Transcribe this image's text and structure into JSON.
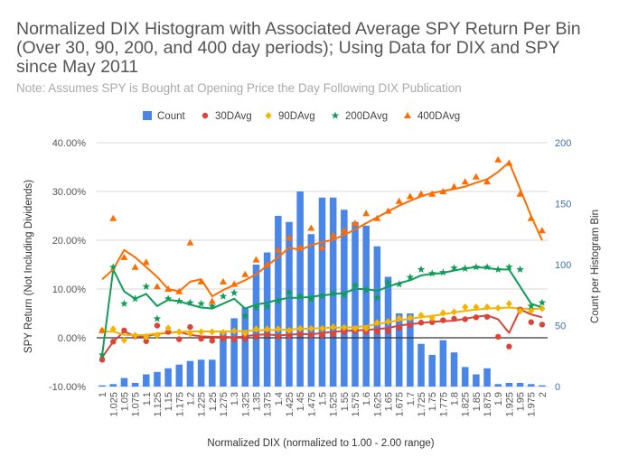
{
  "chart_data": {
    "type": "bar+line+scatter",
    "title_lines": [
      "Normalized DIX Histogram with Associated Average SPY Return Per Bin",
      "(Over 30, 90, 200, and 400 day periods); Using Data for DIX and SPY",
      "since May 2011"
    ],
    "subtitle": "Note: Assumes SPY is Bought at Opening Price the Day Following DIX Publication",
    "xlabel": "Normalized DIX (normalized to 1.00 - 2.00 range)",
    "ylabel_left": "SPY Return (Not Including Dividends)",
    "ylabel_right": "Count per Histogram Bin",
    "y_left_ticks": [
      "40.00%",
      "30.00%",
      "20.00%",
      "10.00%",
      "0.00%",
      "-10.00%"
    ],
    "y_right_ticks": [
      "200",
      "150",
      "100",
      "50",
      "0"
    ],
    "ylim_left": [
      -0.1,
      0.4
    ],
    "ylim_right": [
      0,
      200
    ],
    "legend": [
      {
        "label": "Count",
        "color": "#4a86e8",
        "shape": "square"
      },
      {
        "label": "30DAvg",
        "color": "#db4437",
        "shape": "circle"
      },
      {
        "label": "90DAvg",
        "color": "#f4b400",
        "shape": "diamond"
      },
      {
        "label": "200DAvg",
        "color": "#0f9d58",
        "shape": "star"
      },
      {
        "label": "400DAvg",
        "color": "#ff6d00",
        "shape": "triangle"
      }
    ],
    "x_labels": [
      "1",
      "1.025",
      "1.05",
      "1.075",
      "1.1",
      "1.125",
      "1.15",
      "1.175",
      "1.2",
      "1.225",
      "1.25",
      "1.275",
      "1.3",
      "1.325",
      "1.35",
      "1.375",
      "1.4",
      "1.425",
      "1.45",
      "1.475",
      "1.5",
      "1.525",
      "1.55",
      "1.575",
      "1.6",
      "1.625",
      "1.65",
      "1.675",
      "1.7",
      "1.725",
      "1.75",
      "1.775",
      "1.8",
      "1.825",
      "1.85",
      "1.875",
      "1.9",
      "1.925",
      "1.95",
      "1.975",
      "2"
    ],
    "count": [
      1,
      2,
      7,
      3,
      10,
      12,
      15,
      18,
      21,
      22,
      22,
      45,
      56,
      65,
      100,
      110,
      140,
      135,
      160,
      125,
      155,
      155,
      145,
      135,
      132,
      115,
      90,
      60,
      60,
      35,
      26,
      38,
      28,
      16,
      10,
      15,
      2,
      3,
      3,
      2,
      1
    ],
    "series": [
      {
        "name": "30DAvg",
        "color": "#db4437",
        "points": [
          -0.045,
          -0.008,
          0.015,
          0.003,
          -0.007,
          0.025,
          0.012,
          -0.003,
          0.022,
          -0.002,
          -0.006,
          -0.002,
          -0.003,
          -0.002,
          0.002,
          0.006,
          0.002,
          0.004,
          0.007,
          0.005,
          0.005,
          0.007,
          0.012,
          0.014,
          0.012,
          0.012,
          0.013,
          0.02,
          0.026,
          0.031,
          0.032,
          0.036,
          0.039,
          0.038,
          0.042,
          0.043,
          0.002,
          -0.018,
          0.058,
          0.032,
          0.027
        ],
        "line": [
          -0.04,
          -0.008,
          0.013,
          0.003,
          0.003,
          0.008,
          0.01,
          0.012,
          0.006,
          0.003,
          0.002,
          0.002,
          0.001,
          0.003,
          0.006,
          0.007,
          0.005,
          0.006,
          0.008,
          0.007,
          0.01,
          0.012,
          0.014,
          0.015,
          0.016,
          0.018,
          0.02,
          0.025,
          0.028,
          0.03,
          0.033,
          0.034,
          0.035,
          0.039,
          0.043,
          0.046,
          0.038,
          0.01,
          0.058,
          0.048,
          0.042
        ]
      },
      {
        "name": "90DAvg",
        "color": "#f4b400",
        "points": [
          0.015,
          0.018,
          -0.005,
          0.005,
          0.002,
          0.005,
          0.02,
          0.012,
          0.008,
          0.012,
          0.012,
          0.011,
          0.014,
          0.009,
          0.018,
          0.018,
          0.018,
          0.015,
          0.019,
          0.019,
          0.019,
          0.022,
          0.021,
          0.019,
          0.019,
          0.031,
          0.033,
          0.04,
          0.041,
          0.046,
          0.041,
          0.051,
          0.053,
          0.063,
          0.063,
          0.063,
          0.061,
          0.07,
          0.055,
          0.055,
          0.06
        ],
        "line": [
          0.012,
          0.013,
          0.006,
          0.005,
          0.006,
          0.009,
          0.011,
          0.012,
          0.013,
          0.013,
          0.013,
          0.013,
          0.013,
          0.014,
          0.015,
          0.016,
          0.016,
          0.017,
          0.018,
          0.019,
          0.02,
          0.021,
          0.021,
          0.022,
          0.024,
          0.028,
          0.032,
          0.036,
          0.039,
          0.042,
          0.045,
          0.048,
          0.052,
          0.055,
          0.058,
          0.06,
          0.061,
          0.062,
          0.06,
          0.059,
          0.06
        ]
      },
      {
        "name": "200DAvg",
        "color": "#0f9d58",
        "points": [
          -0.035,
          0.145,
          0.07,
          0.08,
          0.105,
          0.039,
          0.08,
          0.075,
          0.072,
          0.07,
          0.065,
          0.085,
          0.092,
          0.045,
          0.062,
          0.064,
          0.075,
          0.093,
          0.085,
          0.079,
          0.086,
          0.091,
          0.088,
          0.108,
          0.098,
          0.082,
          0.113,
          0.11,
          0.124,
          0.14,
          0.132,
          0.134,
          0.143,
          0.142,
          0.145,
          0.145,
          0.14,
          0.145,
          0.14,
          0.065,
          0.072
        ],
        "line": [
          -0.035,
          0.14,
          0.095,
          0.08,
          0.09,
          0.065,
          0.078,
          0.075,
          0.068,
          0.062,
          0.06,
          0.07,
          0.08,
          0.06,
          0.068,
          0.072,
          0.078,
          0.082,
          0.082,
          0.084,
          0.087,
          0.089,
          0.092,
          0.1,
          0.1,
          0.096,
          0.105,
          0.112,
          0.118,
          0.128,
          0.131,
          0.133,
          0.138,
          0.142,
          0.145,
          0.143,
          0.14,
          0.14,
          0.105,
          0.07,
          0.062
        ]
      },
      {
        "name": "400DAvg",
        "color": "#ff6d00",
        "points": [
          0.015,
          0.245,
          0.165,
          0.145,
          0.155,
          0.105,
          0.1,
          0.095,
          0.195,
          0.115,
          0.075,
          0.115,
          0.11,
          0.13,
          0.16,
          0.15,
          0.18,
          0.205,
          0.185,
          0.225,
          0.185,
          0.21,
          0.22,
          0.235,
          0.255,
          0.245,
          0.26,
          0.28,
          0.29,
          0.295,
          0.295,
          0.3,
          0.31,
          0.32,
          0.33,
          0.32,
          0.365,
          0.358,
          0.295,
          0.245,
          0.22
        ],
        "line": [
          0.12,
          0.14,
          0.18,
          0.165,
          0.145,
          0.125,
          0.1,
          0.095,
          0.115,
          0.12,
          0.085,
          0.098,
          0.108,
          0.118,
          0.13,
          0.148,
          0.165,
          0.185,
          0.18,
          0.19,
          0.196,
          0.201,
          0.211,
          0.222,
          0.235,
          0.247,
          0.259,
          0.271,
          0.281,
          0.29,
          0.297,
          0.301,
          0.305,
          0.31,
          0.318,
          0.325,
          0.34,
          0.36,
          0.305,
          0.25,
          0.2
        ]
      }
    ]
  }
}
